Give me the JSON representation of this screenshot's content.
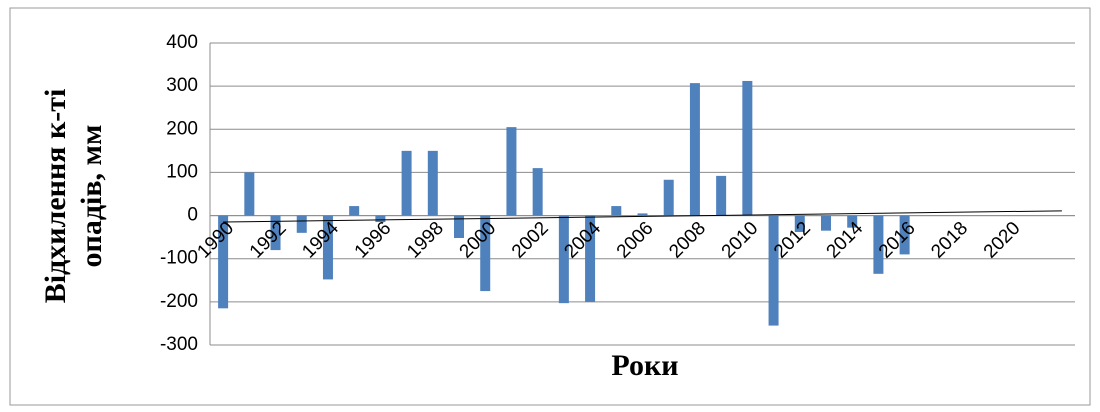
{
  "chart_data": {
    "type": "bar",
    "x_label": "Роки",
    "y_label": [
      "Відхилення к-ті",
      "опадів, мм"
    ],
    "categories": [
      "1990",
      null,
      "1992",
      null,
      "1994",
      null,
      "1996",
      null,
      "1998",
      null,
      "2000",
      null,
      "2002",
      null,
      "2004",
      null,
      "2006",
      null,
      "2008",
      null,
      "2010",
      null,
      "2012",
      null,
      "2014",
      null,
      "2016",
      null,
      "2018",
      null,
      "2020",
      null,
      null
    ],
    "values": [
      -215,
      100,
      -80,
      -40,
      -148,
      22,
      -15,
      150,
      150,
      -52,
      -175,
      205,
      110,
      -203,
      -200,
      22,
      5,
      83,
      307,
      92,
      312,
      -255,
      -38,
      -35,
      -28,
      -135,
      -90,
      null,
      null,
      null,
      null,
      null,
      null
    ],
    "color": "#4f81bd",
    "trendline": {
      "start": -15,
      "end": 11,
      "color": "#000000"
    },
    "ylim": [
      -300,
      400
    ],
    "yticks": [
      -300,
      -200,
      -100,
      0,
      100,
      200,
      300,
      400
    ],
    "grid": true
  }
}
